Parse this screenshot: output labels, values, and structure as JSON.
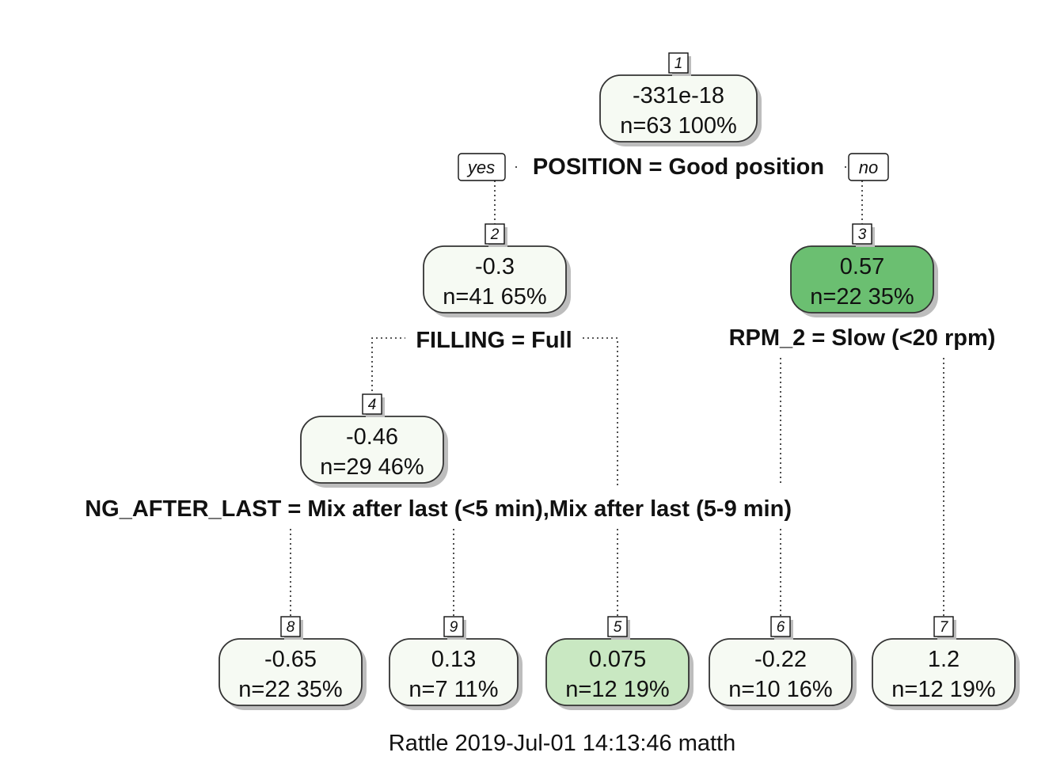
{
  "tree": {
    "nodes": [
      {
        "id": "1",
        "value": "-331e-18",
        "stats": "n=63  100%",
        "fill": "#f6faf3"
      },
      {
        "id": "2",
        "value": "-0.3",
        "stats": "n=41  65%",
        "fill": "#f6faf3"
      },
      {
        "id": "3",
        "value": "0.57",
        "stats": "n=22  35%",
        "fill": "#6bbf71"
      },
      {
        "id": "4",
        "value": "-0.46",
        "stats": "n=29  46%",
        "fill": "#f6faf3"
      },
      {
        "id": "8",
        "value": "-0.65",
        "stats": "n=22  35%",
        "fill": "#f6faf3"
      },
      {
        "id": "9",
        "value": "0.13",
        "stats": "n=7  11%",
        "fill": "#f6faf3"
      },
      {
        "id": "5",
        "value": "0.075",
        "stats": "n=12  19%",
        "fill": "#c9e8c2"
      },
      {
        "id": "6",
        "value": "-0.22",
        "stats": "n=10  16%",
        "fill": "#f6faf3"
      },
      {
        "id": "7",
        "value": "1.2",
        "stats": "n=12  19%",
        "fill": "#f6faf3"
      }
    ],
    "splits": [
      {
        "id": "split-1",
        "label": "POSITION = Good position"
      },
      {
        "id": "split-2",
        "label": "FILLING = Full"
      },
      {
        "id": "split-3",
        "label": "RPM_2 = Slow (<20 rpm)"
      },
      {
        "id": "split-4",
        "label": "NG_AFTER_LAST = Mix after last (<5 min),Mix after last (5-9 min)"
      }
    ],
    "yes_label": "yes",
    "no_label": "no"
  },
  "footer": "Rattle 2019-Jul-01 14:13:46 matth"
}
